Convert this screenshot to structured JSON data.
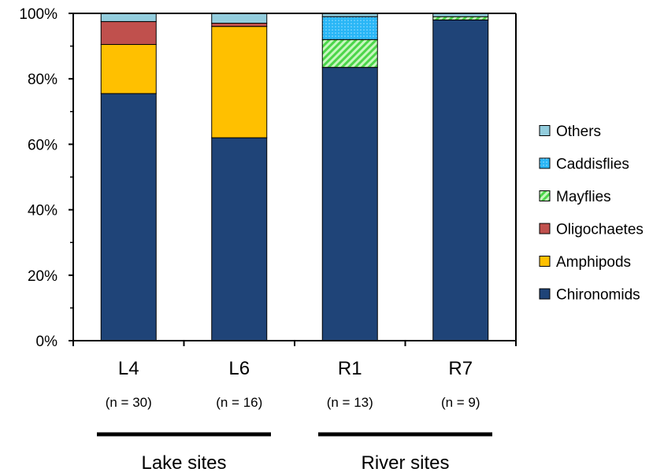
{
  "chart_data": {
    "type": "bar",
    "stacked": true,
    "categories": [
      "L4",
      "L6",
      "R1",
      "R7"
    ],
    "category_notes": [
      "(n = 30)",
      "(n = 16)",
      "(n = 13)",
      "(n = 9)"
    ],
    "groups": [
      {
        "label": "Lake sites",
        "categories": [
          "L4",
          "L6"
        ]
      },
      {
        "label": "River sites",
        "categories": [
          "R1",
          "R7"
        ]
      }
    ],
    "series": [
      {
        "name": "Chironomids",
        "color": "#1f4478",
        "pattern": "solid",
        "values": [
          75.5,
          62.0,
          83.5,
          98.0
        ]
      },
      {
        "name": "Amphipods",
        "color": "#ffc000",
        "pattern": "solid",
        "values": [
          15.0,
          34.0,
          0.0,
          0.0
        ]
      },
      {
        "name": "Oligochaetes",
        "color": "#c0504d",
        "pattern": "solid",
        "values": [
          7.0,
          1.0,
          0.0,
          0.0
        ]
      },
      {
        "name": "Mayflies",
        "color": "#92f08a",
        "pattern": "hatched",
        "values": [
          0.0,
          0.0,
          8.5,
          1.0
        ]
      },
      {
        "name": "Caddisflies",
        "color": "#29b6f6",
        "pattern": "dotted",
        "values": [
          0.0,
          0.0,
          7.0,
          0.0
        ]
      },
      {
        "name": "Others",
        "color": "#93cddd",
        "pattern": "solid",
        "values": [
          2.5,
          3.0,
          1.0,
          1.0
        ]
      }
    ],
    "y_ticks": [
      "0%",
      "20%",
      "40%",
      "60%",
      "80%",
      "100%"
    ],
    "ylim": [
      0,
      100
    ],
    "legend_order": [
      "Others",
      "Caddisflies",
      "Mayflies",
      "Oligochaetes",
      "Amphipods",
      "Chironomids"
    ],
    "legend_position": "right",
    "grid": false
  }
}
